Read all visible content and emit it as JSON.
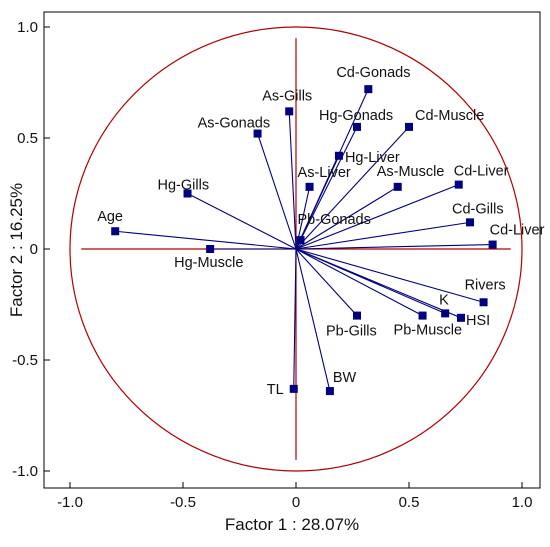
{
  "chart_data": {
    "type": "scatter",
    "title": "",
    "xlabel": "Factor 1 : 28.07%",
    "ylabel": "Factor 2 : 16.25%",
    "xlim": [
      -1.1,
      1.1
    ],
    "ylim": [
      -1.1,
      1.1
    ],
    "xticks": [
      "-1.0",
      "-0.5",
      "0",
      "0.5",
      "1.0"
    ],
    "yticks": [
      "1.0",
      "0.5",
      "0",
      "-0.5",
      "-1.0"
    ],
    "xtick_values": [
      -1.0,
      -0.5,
      0,
      0.5,
      1.0
    ],
    "ytick_values": [
      1.0,
      0.5,
      0,
      -0.5,
      -1.0
    ],
    "unit_circle": true,
    "vectors_from_origin": true,
    "grid": false,
    "colors": {
      "points": "#000080",
      "vectors": "#000080",
      "circle": "#b00000",
      "axes_lines": "#b00000",
      "frame": "#000000"
    },
    "points": [
      {
        "label": "Cd-Gonads",
        "x": 0.32,
        "y": 0.72
      },
      {
        "label": "As-Gills",
        "x": -0.03,
        "y": 0.62
      },
      {
        "label": "Cd-Muscle",
        "x": 0.5,
        "y": 0.55
      },
      {
        "label": "Hg-Gonads",
        "x": 0.27,
        "y": 0.55
      },
      {
        "label": "As-Gonads",
        "x": -0.17,
        "y": 0.52
      },
      {
        "label": "Hg-Liver",
        "x": 0.19,
        "y": 0.42
      },
      {
        "label": "As-Liver",
        "x": 0.06,
        "y": 0.28
      },
      {
        "label": "As-Muscle",
        "x": 0.45,
        "y": 0.28
      },
      {
        "label": "Cd-Liver",
        "x": 0.72,
        "y": 0.29
      },
      {
        "label": "Hg-Gills",
        "x": -0.48,
        "y": 0.25
      },
      {
        "label": "Cd-Gills",
        "x": 0.77,
        "y": 0.12
      },
      {
        "label": "Pb-Gonads",
        "x": 0.02,
        "y": 0.04
      },
      {
        "label": "Age",
        "x": -0.8,
        "y": 0.08
      },
      {
        "label": "Cd-Liver",
        "x": 0.87,
        "y": 0.02
      },
      {
        "label": "Hg-Muscle",
        "x": -0.38,
        "y": 0.0
      },
      {
        "label": "Rivers",
        "x": 0.83,
        "y": -0.24
      },
      {
        "label": "K",
        "x": 0.66,
        "y": -0.29
      },
      {
        "label": "HSI",
        "x": 0.73,
        "y": -0.31
      },
      {
        "label": "Pb-Gills",
        "x": 0.27,
        "y": -0.3
      },
      {
        "label": "Pb-Muscle",
        "x": 0.56,
        "y": -0.3
      },
      {
        "label": "TL",
        "x": -0.01,
        "y": -0.63
      },
      {
        "label": "BW",
        "x": 0.15,
        "y": -0.64
      }
    ]
  }
}
